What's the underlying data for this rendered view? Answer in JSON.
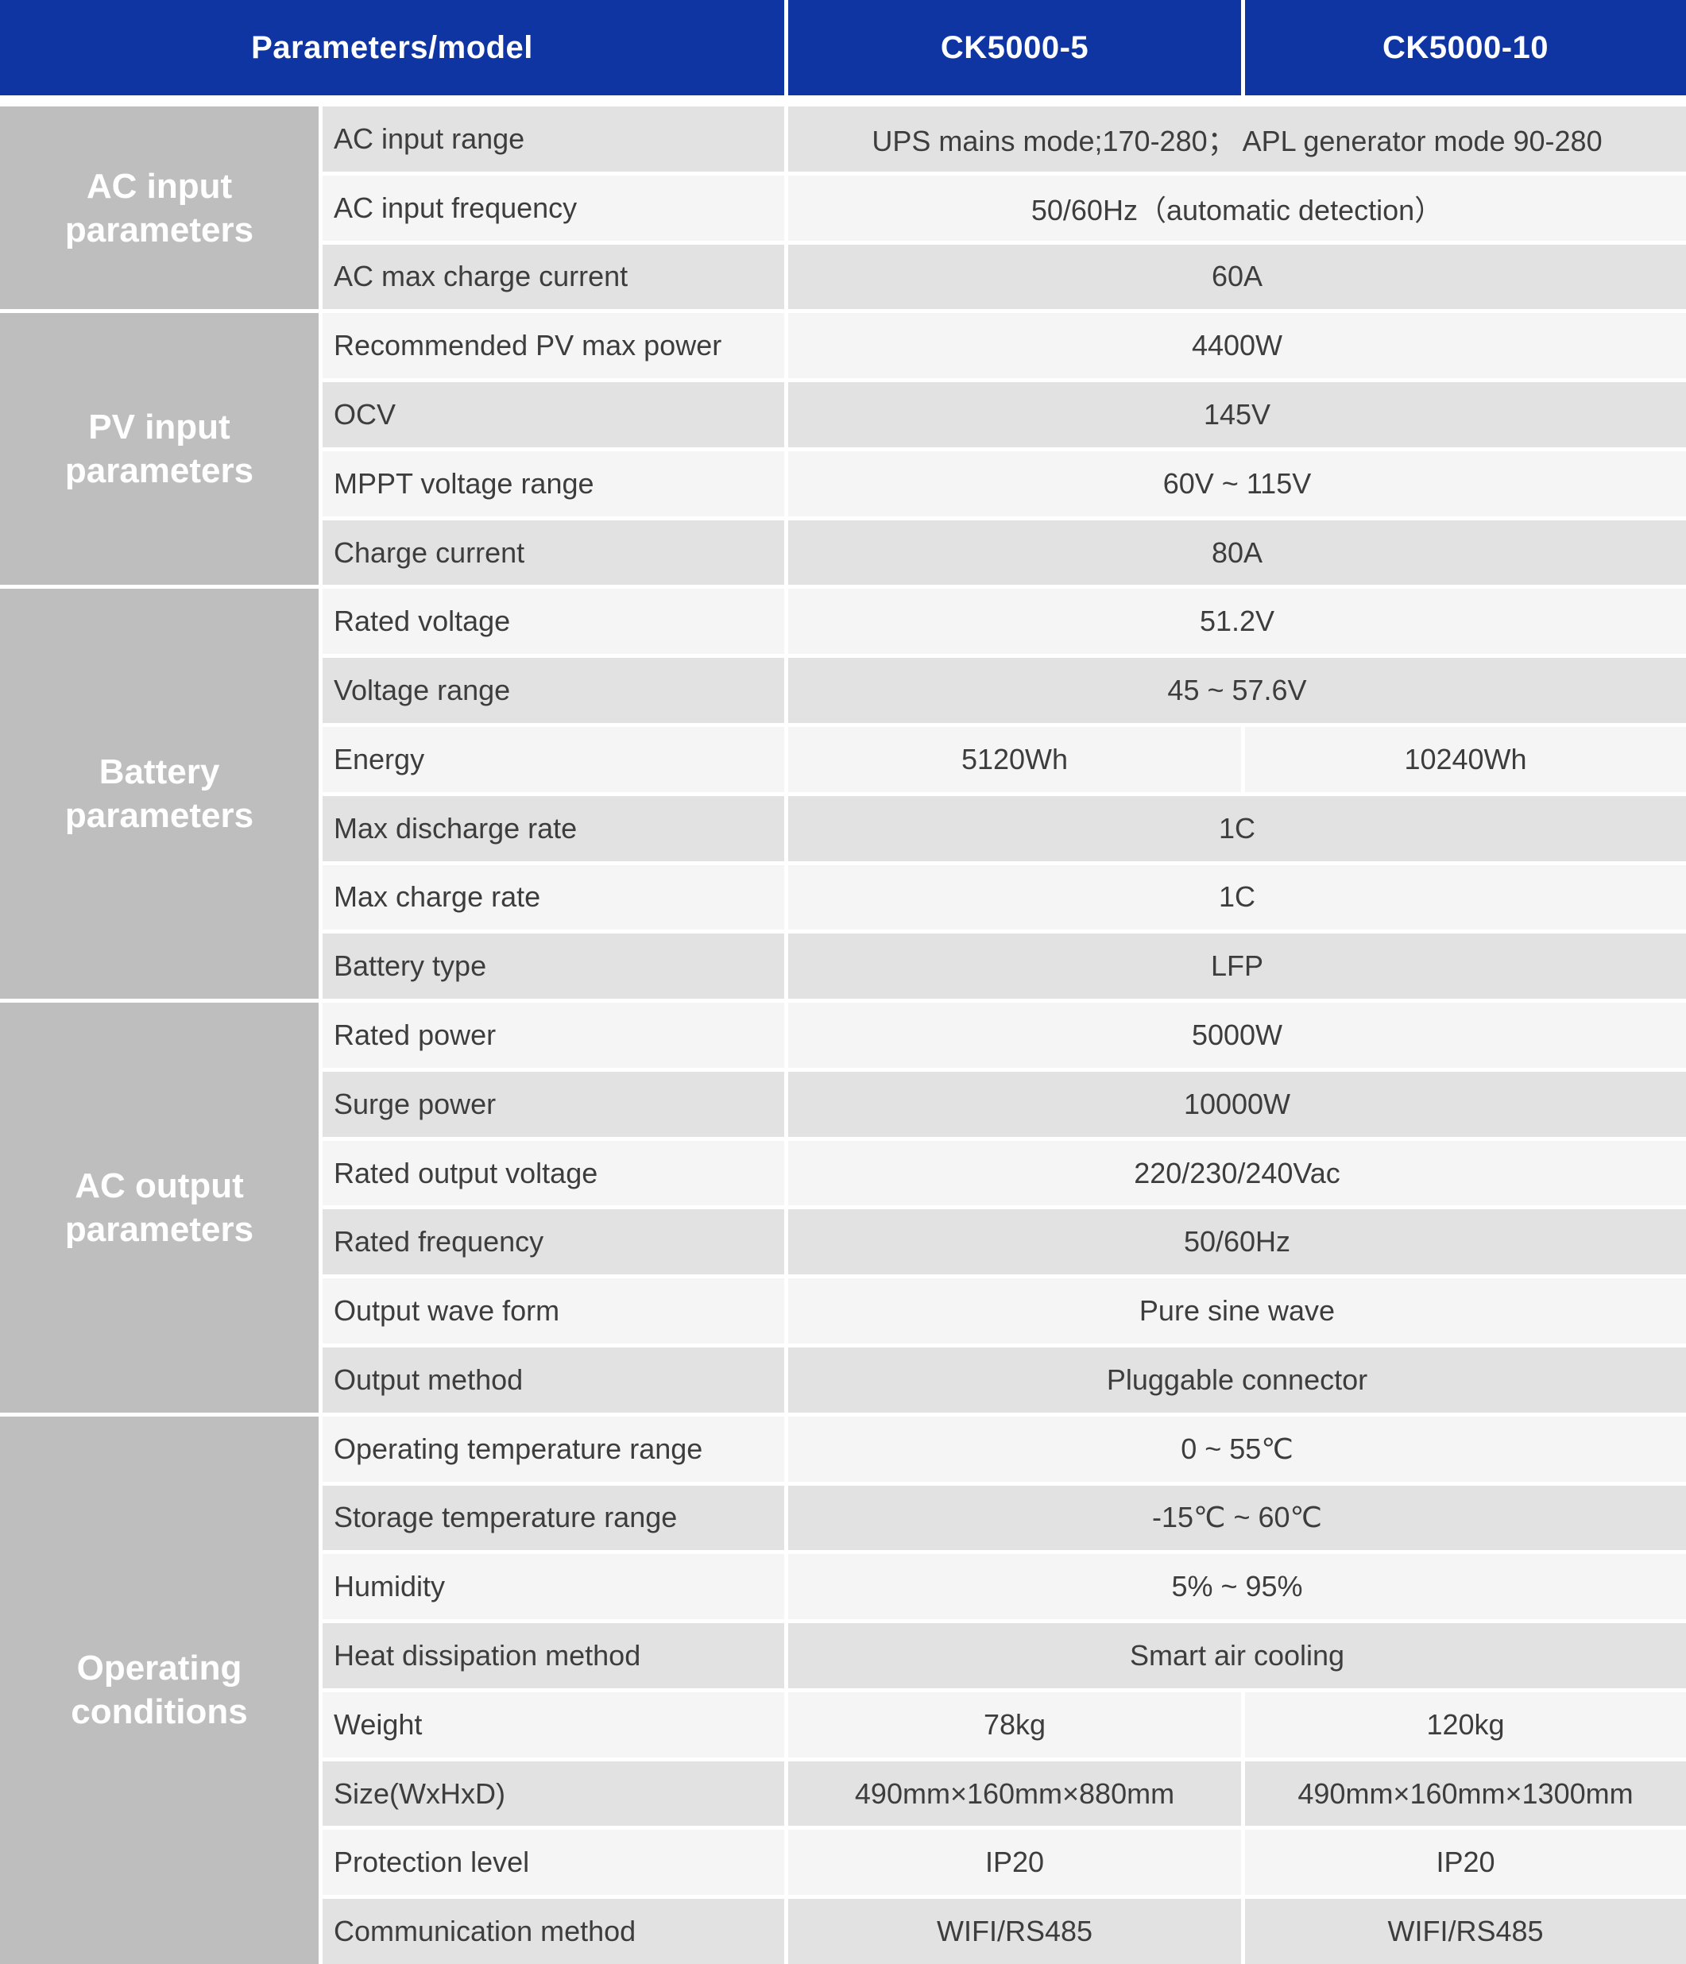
{
  "table": {
    "header": {
      "params_model": "Parameters/model",
      "model_1": "CK5000-5",
      "model_2": "CK5000-10"
    },
    "colors": {
      "header_blue": "#0f35a3",
      "group_gray": "#bebebe",
      "row_dark": "#e2e2e2",
      "row_light": "#f5f5f5",
      "header_text": "#ffffff",
      "body_text": "#3d3d3d"
    },
    "sections": [
      {
        "label": "AC input parameters",
        "rows": [
          {
            "param": "AC input range",
            "value": "UPS mains mode;170-280；  APL generator mode 90-280"
          },
          {
            "param": "AC input frequency",
            "value": "50/60Hz（automatic detection）"
          },
          {
            "param": "AC max charge current",
            "value": "60A"
          }
        ]
      },
      {
        "label": "PV input parameters",
        "rows": [
          {
            "param": "Recommended PV max power",
            "value": "4400W"
          },
          {
            "param": "OCV",
            "value": "145V"
          },
          {
            "param": "MPPT voltage range",
            "value": "60V ~ 115V"
          },
          {
            "param": "Charge current",
            "value": "80A"
          }
        ]
      },
      {
        "label": "Battery parameters",
        "rows": [
          {
            "param": "Rated voltage",
            "value": "51.2V"
          },
          {
            "param": "Voltage range",
            "value": "45 ~ 57.6V"
          },
          {
            "param": "Energy",
            "values": [
              "5120Wh",
              "10240Wh"
            ]
          },
          {
            "param": "Max discharge rate",
            "value": "1C"
          },
          {
            "param": "Max charge rate",
            "value": "1C"
          },
          {
            "param": "Battery type",
            "value": "LFP"
          }
        ]
      },
      {
        "label": "AC output parameters",
        "rows": [
          {
            "param": "Rated power",
            "value": "5000W"
          },
          {
            "param": "Surge power",
            "value": "10000W"
          },
          {
            "param": "Rated output voltage",
            "value": "220/230/240Vac"
          },
          {
            "param": "Rated frequency",
            "value": "50/60Hz"
          },
          {
            "param": "Output wave form",
            "value": "Pure sine wave"
          },
          {
            "param": "Output method",
            "value": "Pluggable connector"
          }
        ]
      },
      {
        "label": "Operating conditions",
        "rows": [
          {
            "param": "Operating temperature range",
            "value": "0 ~ 55℃"
          },
          {
            "param": "Storage temperature range",
            "value": "-15℃ ~ 60℃"
          },
          {
            "param": "Humidity",
            "value": "5% ~ 95%"
          },
          {
            "param": "Heat dissipation method",
            "value": "Smart air cooling"
          },
          {
            "param": "Weight",
            "values": [
              "78kg",
              "120kg"
            ]
          },
          {
            "param": "Size(WxHxD)",
            "values": [
              "490mm×160mm×880mm",
              "490mm×160mm×1300mm"
            ]
          },
          {
            "param": "Protection level",
            "values": [
              "IP20",
              "IP20"
            ]
          },
          {
            "param": "Communication method",
            "values": [
              "WIFI/RS485",
              "WIFI/RS485"
            ]
          }
        ]
      }
    ]
  }
}
